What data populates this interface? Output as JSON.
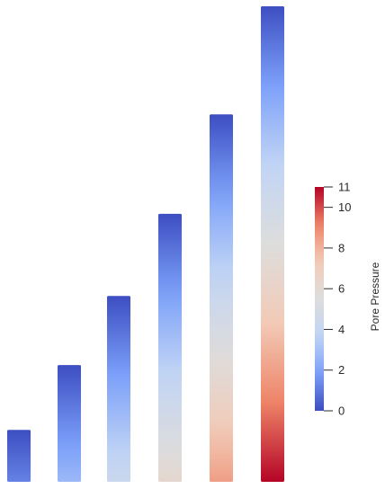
{
  "scene": {
    "background": "#ffffff"
  },
  "colormap": {
    "name": "Cool to Warm",
    "stops": [
      "#3b4cc0",
      "#7b9ff9",
      "#c0d4f5",
      "#dddddd",
      "#f2cbb7",
      "#ee8468",
      "#b40426"
    ]
  },
  "bars": [
    {
      "bottom_value": 1.2,
      "top_value": 0.05
    },
    {
      "bottom_value": 2.7,
      "top_value": 0.05
    },
    {
      "bottom_value": 4.3,
      "top_value": 0.05
    },
    {
      "bottom_value": 6.2,
      "top_value": 0.05
    },
    {
      "bottom_value": 8.5,
      "top_value": 0.05
    },
    {
      "bottom_value": 11,
      "top_value": 0.05
    }
  ],
  "scalar_bar": {
    "title": "Pore Pressure",
    "range": [
      0,
      11
    ],
    "ticks": [
      {
        "value": 0,
        "label": "0"
      },
      {
        "value": 2,
        "label": "2"
      },
      {
        "value": 4,
        "label": "4"
      },
      {
        "value": 6,
        "label": "6"
      },
      {
        "value": 8,
        "label": "8"
      },
      {
        "value": 10,
        "label": "10"
      },
      {
        "value": 11,
        "label": "11"
      }
    ]
  }
}
